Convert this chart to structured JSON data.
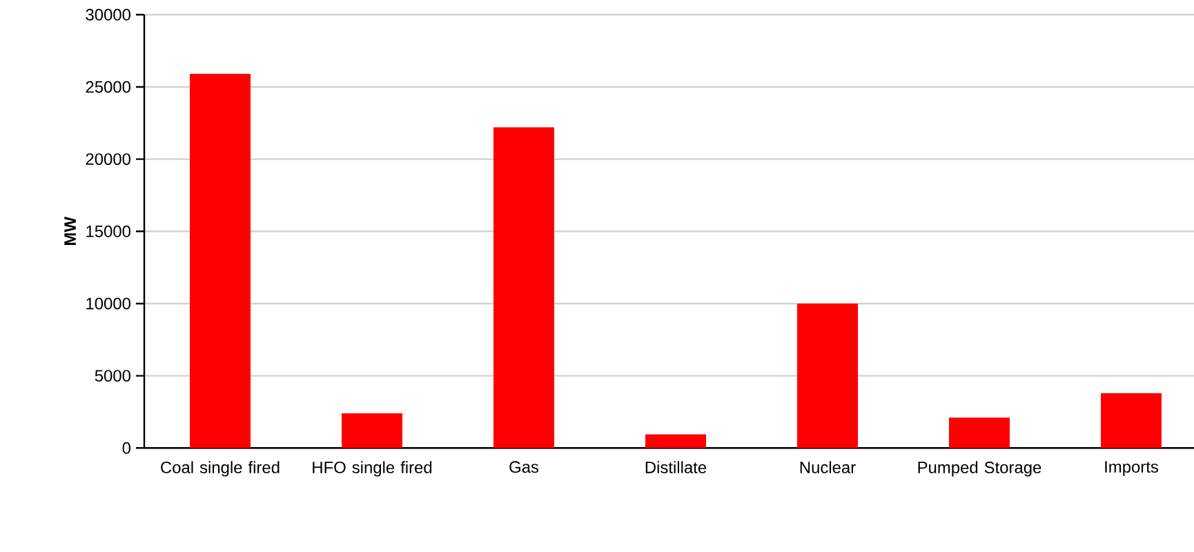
{
  "chart_data": {
    "type": "bar",
    "ylabel": "MW",
    "categories": [
      "Coal single fired",
      "HFO single fired",
      "Gas",
      "Distillate",
      "Nuclear",
      "Pumped Storage",
      "Imports"
    ],
    "values": [
      25900,
      2400,
      22200,
      950,
      10000,
      2100,
      3800
    ],
    "color": "#ff0000",
    "ylim": [
      0,
      30000
    ],
    "yticks": [
      0,
      5000,
      10000,
      15000,
      20000,
      25000,
      30000
    ],
    "grid": "y"
  }
}
